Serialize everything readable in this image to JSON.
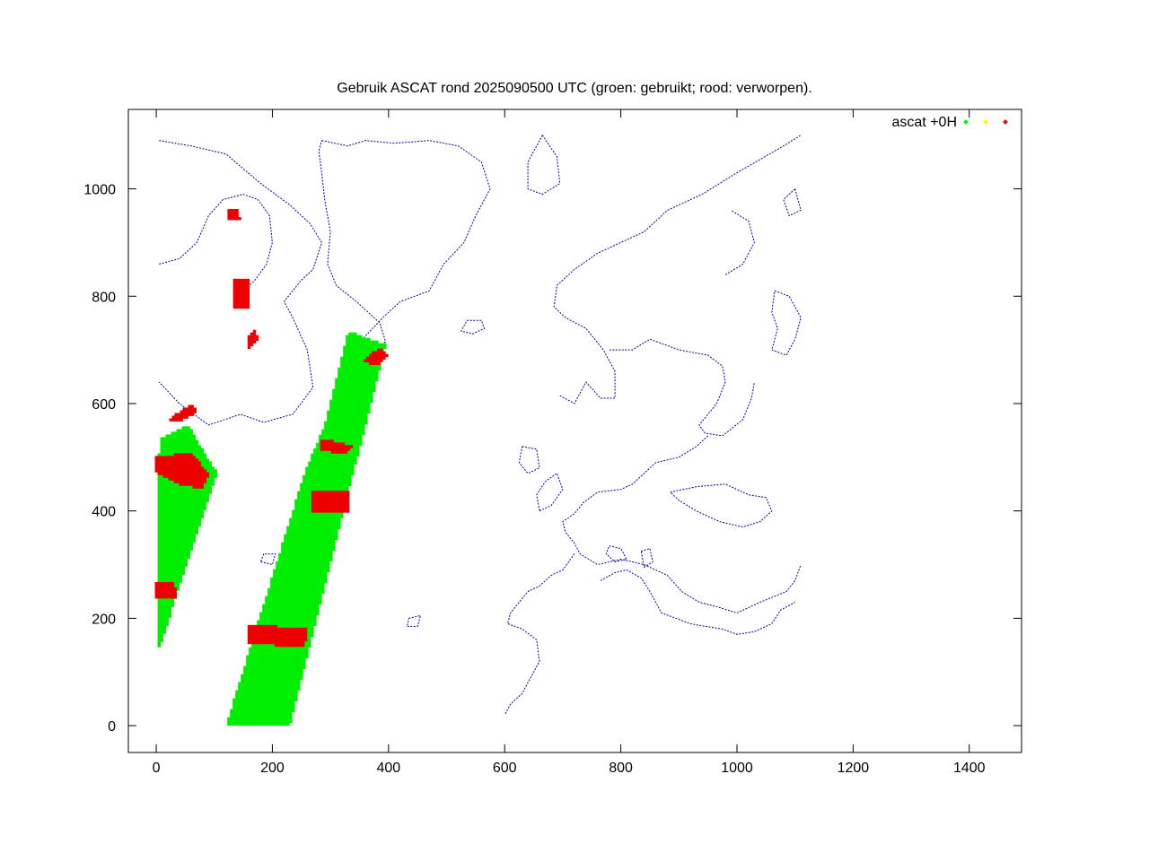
{
  "chart_data": {
    "type": "scatter",
    "title": "Gebruik ASCAT rond 2025090500 UTC (groen: gebruikt; rood: verworpen).",
    "xlabel": "",
    "ylabel": "",
    "xlim": [
      -48,
      1490
    ],
    "ylim": [
      -50,
      1148
    ],
    "x_ticks": [
      0,
      200,
      400,
      600,
      800,
      1000,
      1200,
      1400
    ],
    "y_ticks": [
      0,
      200,
      400,
      600,
      800,
      1000
    ],
    "grid": false,
    "legend": {
      "position": "top-right",
      "label": "ascat +0H"
    },
    "colors": {
      "used": "#00ee00",
      "marginal": "#ffff00",
      "rejected": "#ee0000",
      "coastline": "#0000aa",
      "axes": "#000000"
    },
    "series": [
      {
        "name": "ascat +0H",
        "status": "used",
        "regions": [
          [
            [
              0,
              150
            ],
            [
              5,
              145
            ],
            [
              105,
              470
            ],
            [
              85,
              505
            ],
            [
              55,
              560
            ],
            [
              5,
              535
            ]
          ],
          [
            [
              120,
              0
            ],
            [
              230,
              0
            ],
            [
              395,
              710
            ],
            [
              330,
              735
            ],
            [
              290,
              560
            ],
            [
              255,
              470
            ]
          ]
        ]
      },
      {
        "name": "",
        "status": "rejected",
        "regions": [
          [
            [
              0,
              500
            ],
            [
              60,
              510
            ],
            [
              90,
              470
            ],
            [
              80,
              440
            ],
            [
              40,
              450
            ],
            [
              0,
              470
            ]
          ],
          [
            [
              0,
              265
            ],
            [
              30,
              270
            ],
            [
              35,
              240
            ],
            [
              0,
              235
            ]
          ],
          [
            [
              20,
              570
            ],
            [
              60,
              600
            ],
            [
              70,
              585
            ],
            [
              40,
              565
            ]
          ],
          [
            [
              160,
              190
            ],
            [
              260,
              180
            ],
            [
              255,
              145
            ],
            [
              155,
              155
            ]
          ],
          [
            [
              270,
              440
            ],
            [
              330,
              435
            ],
            [
              330,
              395
            ],
            [
              265,
              395
            ]
          ],
          [
            [
              285,
              535
            ],
            [
              340,
              520
            ],
            [
              320,
              505
            ],
            [
              280,
              515
            ]
          ],
          [
            [
              355,
              680
            ],
            [
              380,
              670
            ],
            [
              400,
              690
            ],
            [
              385,
              705
            ]
          ],
          [
            [
              130,
              775
            ],
            [
              160,
              780
            ],
            [
              160,
              830
            ],
            [
              135,
              835
            ]
          ],
          [
            [
              125,
              960
            ],
            [
              140,
              960
            ],
            [
              145,
              940
            ],
            [
              125,
              940
            ]
          ],
          [
            [
              160,
              700
            ],
            [
              175,
              720
            ],
            [
              170,
              740
            ],
            [
              155,
              720
            ]
          ]
        ]
      }
    ],
    "coastlines": [
      [
        [
          5,
          1090
        ],
        [
          60,
          1080
        ],
        [
          120,
          1065
        ],
        [
          180,
          1010
        ],
        [
          230,
          970
        ],
        [
          265,
          935
        ],
        [
          285,
          900
        ],
        [
          270,
          850
        ],
        [
          250,
          830
        ],
        [
          220,
          790
        ],
        [
          235,
          760
        ],
        [
          260,
          700
        ],
        [
          270,
          630
        ],
        [
          235,
          580
        ],
        [
          185,
          565
        ],
        [
          145,
          580
        ],
        [
          90,
          560
        ],
        [
          40,
          600
        ],
        [
          5,
          640
        ]
      ],
      [
        [
          5,
          860
        ],
        [
          40,
          870
        ],
        [
          70,
          900
        ],
        [
          90,
          950
        ],
        [
          115,
          980
        ],
        [
          150,
          990
        ],
        [
          175,
          980
        ],
        [
          195,
          950
        ],
        [
          200,
          900
        ],
        [
          190,
          860
        ],
        [
          170,
          830
        ],
        [
          150,
          810
        ]
      ],
      [
        [
          285,
          1090
        ],
        [
          330,
          1080
        ],
        [
          360,
          1090
        ],
        [
          410,
          1085
        ],
        [
          470,
          1090
        ],
        [
          520,
          1080
        ],
        [
          560,
          1050
        ],
        [
          575,
          1000
        ],
        [
          550,
          950
        ],
        [
          530,
          900
        ],
        [
          495,
          860
        ],
        [
          470,
          810
        ],
        [
          420,
          790
        ],
        [
          390,
          760
        ],
        [
          355,
          720
        ],
        [
          340,
          700
        ],
        [
          345,
          670
        ],
        [
          360,
          700
        ],
        [
          380,
          705
        ],
        [
          395,
          715
        ],
        [
          385,
          750
        ],
        [
          345,
          790
        ],
        [
          310,
          820
        ],
        [
          295,
          860
        ],
        [
          300,
          920
        ],
        [
          290,
          980
        ],
        [
          285,
          1030
        ],
        [
          280,
          1070
        ],
        [
          285,
          1090
        ]
      ],
      [
        [
          535,
          755
        ],
        [
          560,
          755
        ],
        [
          565,
          740
        ],
        [
          545,
          730
        ],
        [
          525,
          735
        ],
        [
          535,
          755
        ]
      ],
      [
        [
          665,
          1100
        ],
        [
          690,
          1060
        ],
        [
          695,
          1010
        ],
        [
          665,
          990
        ],
        [
          640,
          1000
        ],
        [
          640,
          1050
        ],
        [
          665,
          1100
        ]
      ],
      [
        [
          695,
          615
        ],
        [
          720,
          600
        ],
        [
          740,
          640
        ],
        [
          765,
          610
        ],
        [
          790,
          610
        ],
        [
          790,
          660
        ],
        [
          770,
          700
        ],
        [
          740,
          740
        ],
        [
          705,
          760
        ],
        [
          685,
          780
        ],
        [
          690,
          820
        ],
        [
          720,
          850
        ],
        [
          760,
          880
        ],
        [
          800,
          900
        ],
        [
          840,
          920
        ],
        [
          880,
          960
        ],
        [
          940,
          990
        ],
        [
          1000,
          1030
        ],
        [
          1080,
          1080
        ],
        [
          1110,
          1100
        ]
      ],
      [
        [
          980,
          840
        ],
        [
          1010,
          860
        ],
        [
          1030,
          900
        ],
        [
          1020,
          940
        ],
        [
          990,
          960
        ]
      ],
      [
        [
          780,
          700
        ],
        [
          820,
          700
        ],
        [
          850,
          720
        ],
        [
          900,
          700
        ],
        [
          950,
          690
        ],
        [
          975,
          670
        ],
        [
          980,
          640
        ],
        [
          965,
          600
        ],
        [
          950,
          580
        ],
        [
          935,
          560
        ],
        [
          945,
          545
        ],
        [
          975,
          540
        ],
        [
          1010,
          570
        ],
        [
          1025,
          610
        ],
        [
          1030,
          640
        ]
      ],
      [
        [
          950,
          540
        ],
        [
          930,
          520
        ],
        [
          900,
          500
        ],
        [
          860,
          490
        ],
        [
          840,
          470
        ],
        [
          820,
          450
        ],
        [
          800,
          440
        ],
        [
          760,
          435
        ],
        [
          735,
          415
        ],
        [
          720,
          395
        ],
        [
          700,
          380
        ],
        [
          705,
          360
        ],
        [
          720,
          340
        ],
        [
          730,
          320
        ],
        [
          760,
          300
        ],
        [
          800,
          310
        ],
        [
          840,
          300
        ],
        [
          880,
          280
        ],
        [
          905,
          250
        ],
        [
          935,
          230
        ],
        [
          970,
          220
        ],
        [
          1000,
          210
        ],
        [
          1040,
          230
        ],
        [
          1085,
          250
        ],
        [
          1100,
          270
        ],
        [
          1110,
          300
        ]
      ],
      [
        [
          885,
          435
        ],
        [
          930,
          445
        ],
        [
          980,
          450
        ],
        [
          1020,
          430
        ],
        [
          1050,
          425
        ],
        [
          1060,
          400
        ],
        [
          1040,
          380
        ],
        [
          1010,
          370
        ],
        [
          970,
          380
        ],
        [
          930,
          400
        ],
        [
          900,
          420
        ],
        [
          885,
          435
        ]
      ],
      [
        [
          720,
          320
        ],
        [
          700,
          290
        ],
        [
          680,
          280
        ],
        [
          660,
          260
        ],
        [
          640,
          250
        ],
        [
          625,
          230
        ],
        [
          610,
          210
        ],
        [
          605,
          190
        ],
        [
          630,
          180
        ],
        [
          655,
          160
        ],
        [
          660,
          120
        ],
        [
          640,
          80
        ],
        [
          630,
          60
        ],
        [
          610,
          40
        ],
        [
          600,
          20
        ]
      ],
      [
        [
          765,
          270
        ],
        [
          790,
          285
        ],
        [
          810,
          290
        ],
        [
          835,
          275
        ],
        [
          850,
          250
        ],
        [
          860,
          230
        ],
        [
          870,
          210
        ],
        [
          895,
          200
        ],
        [
          920,
          190
        ],
        [
          945,
          185
        ],
        [
          975,
          180
        ],
        [
          1000,
          170
        ],
        [
          1030,
          175
        ],
        [
          1060,
          190
        ],
        [
          1075,
          215
        ],
        [
          1100,
          230
        ]
      ],
      [
        [
          780,
          335
        ],
        [
          800,
          330
        ],
        [
          810,
          310
        ],
        [
          790,
          305
        ],
        [
          775,
          320
        ],
        [
          780,
          335
        ]
      ],
      [
        [
          835,
          325
        ],
        [
          850,
          330
        ],
        [
          855,
          305
        ],
        [
          840,
          295
        ],
        [
          835,
          325
        ]
      ],
      [
        [
          660,
          400
        ],
        [
          680,
          410
        ],
        [
          700,
          440
        ],
        [
          690,
          470
        ],
        [
          670,
          455
        ],
        [
          655,
          430
        ],
        [
          660,
          400
        ]
      ],
      [
        [
          630,
          520
        ],
        [
          655,
          515
        ],
        [
          660,
          480
        ],
        [
          640,
          470
        ],
        [
          625,
          490
        ],
        [
          630,
          520
        ]
      ],
      [
        [
          435,
          200
        ],
        [
          455,
          205
        ],
        [
          450,
          185
        ],
        [
          432,
          185
        ],
        [
          435,
          200
        ]
      ],
      [
        [
          180,
          305
        ],
        [
          200,
          300
        ],
        [
          205,
          320
        ],
        [
          185,
          320
        ],
        [
          180,
          305
        ]
      ],
      [
        [
          1060,
          700
        ],
        [
          1085,
          690
        ],
        [
          1100,
          720
        ],
        [
          1110,
          760
        ],
        [
          1090,
          800
        ],
        [
          1065,
          810
        ],
        [
          1060,
          770
        ],
        [
          1070,
          740
        ],
        [
          1060,
          700
        ]
      ],
      [
        [
          1100,
          1000
        ],
        [
          1110,
          960
        ],
        [
          1090,
          950
        ],
        [
          1080,
          980
        ],
        [
          1100,
          1000
        ]
      ]
    ]
  }
}
